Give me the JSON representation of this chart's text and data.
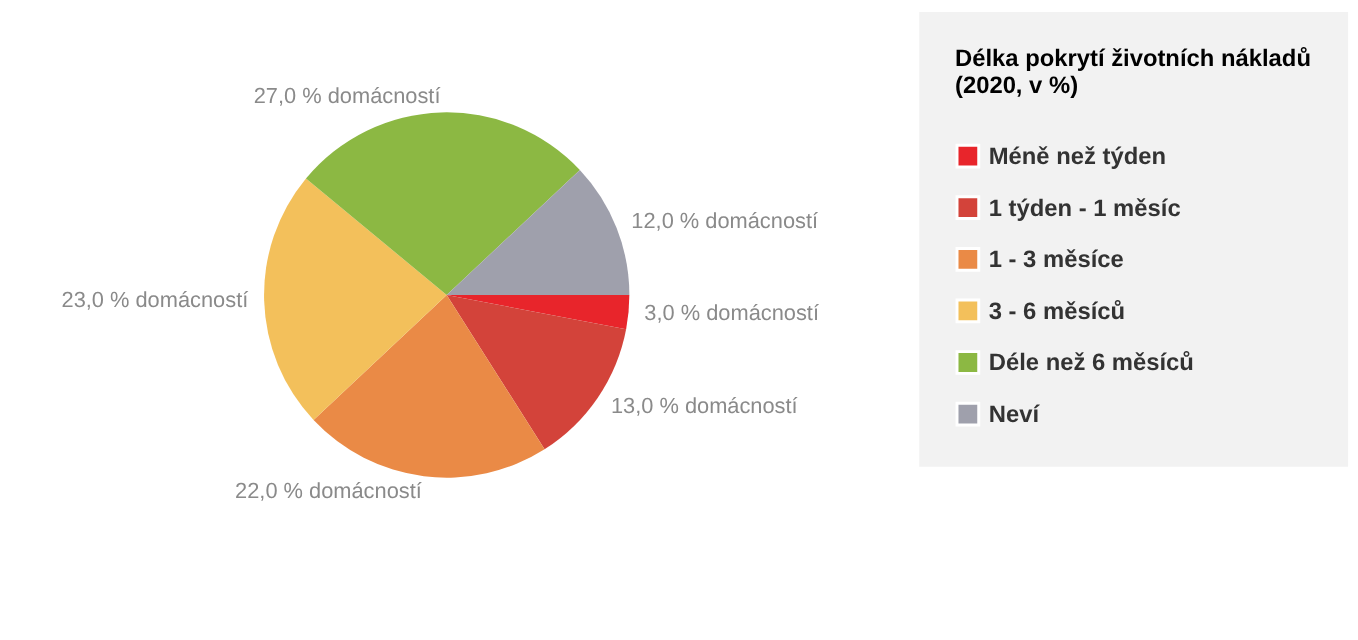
{
  "chart_data": {
    "type": "pie",
    "legend_title": "Délka pokrytí životních nákladů (2020, v %)",
    "categories": [
      "Méně než týden",
      "1 týden - 1 měsíc",
      "1 - 3 měsíce",
      "3 - 6 měsíců",
      "Déle než 6 měsíců",
      "Neví"
    ],
    "values": [
      3,
      13,
      22,
      23,
      27,
      12
    ],
    "value_labels": [
      "3,0 % domácností",
      "13,0 % domácností",
      "22,0 % domácností",
      "23,0 % domácností",
      "27,0 % domácností",
      "12,0 % domácností"
    ],
    "colors": [
      "#e8252b",
      "#d3433a",
      "#ea8a46",
      "#f3c05b",
      "#8cb843",
      "#9fa0ac"
    ],
    "legend": "right"
  }
}
